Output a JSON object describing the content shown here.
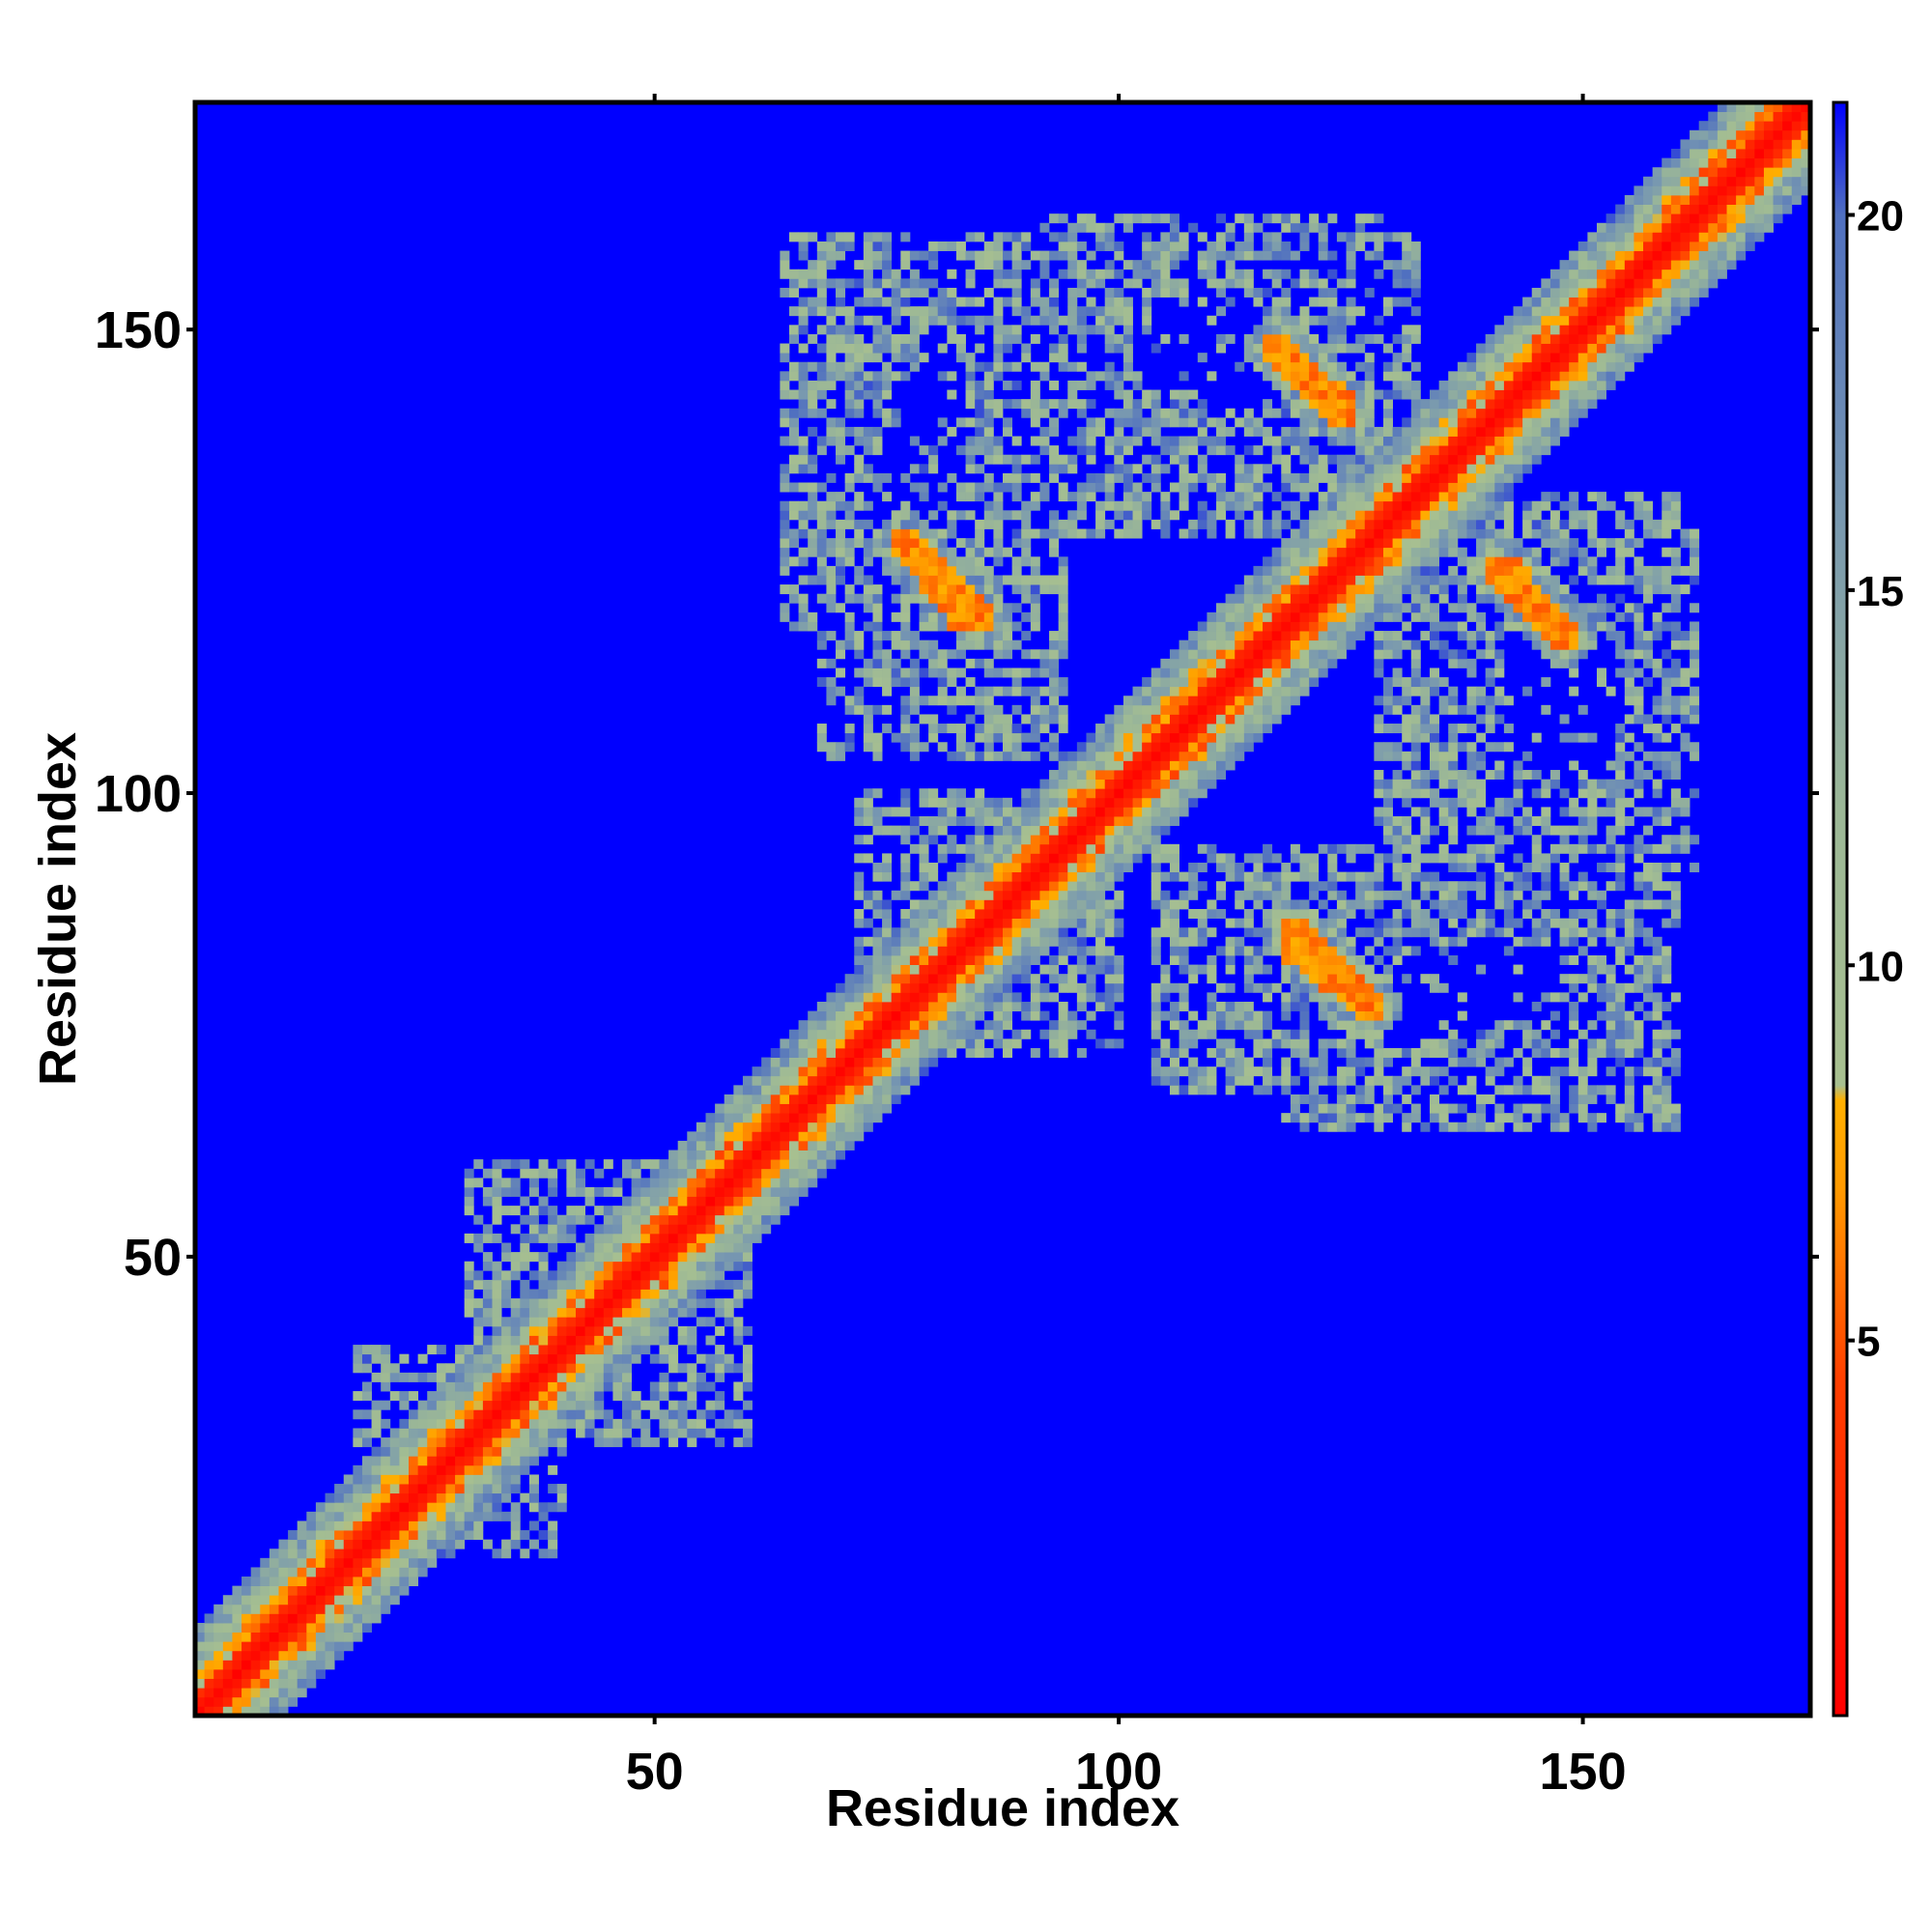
{
  "chart_data": {
    "type": "heatmap",
    "title": "",
    "xlabel": "Residue index",
    "ylabel": "Residue index",
    "xlim": [
      1,
      174
    ],
    "ylim": [
      1,
      174
    ],
    "x_ticks": [
      50,
      100,
      150
    ],
    "y_ticks": [
      50,
      100,
      150
    ],
    "n_residues": 174,
    "colorbar": {
      "ticks": [
        5,
        10,
        15,
        20
      ],
      "range": [
        0,
        21.5
      ],
      "placement": "right",
      "stops": [
        {
          "value": 0,
          "color": "#ff0000"
        },
        {
          "value": 4.5,
          "color": "#ff4000"
        },
        {
          "value": 7,
          "color": "#ff9900"
        },
        {
          "value": 8.2,
          "color": "#ffb000"
        },
        {
          "value": 8.4,
          "color": "#a8c090"
        },
        {
          "value": 12,
          "color": "#9cb896"
        },
        {
          "value": 16,
          "color": "#7898b0"
        },
        {
          "value": 20,
          "color": "#5070c0"
        },
        {
          "value": 21.5,
          "color": "#0000ff"
        }
      ]
    },
    "background_color": "#0000ff",
    "description_of_pattern": {
      "diagonal_contact_band": {
        "from": [
          1,
          1
        ],
        "to": [
          174,
          174
        ]
      },
      "contact_islands": [
        {
          "x_range": [
            64,
            90
          ],
          "y_range": [
            118,
            160
          ],
          "strong_segment": [
            [
              77,
              127
            ],
            [
              84,
              118
            ]
          ]
        },
        {
          "x_range": [
            92,
            128
          ],
          "y_range": [
            128,
            162
          ],
          "strong_segment": [
            [
              117,
              148
            ],
            [
              124,
              141
            ]
          ]
        },
        {
          "x_range": [
            136,
            160
          ],
          "y_range": [
            92,
            132
          ],
          "strong_segment": [
            [
              142,
              124
            ],
            [
              148,
              117
            ]
          ]
        },
        {
          "x_range": [
            104,
            160
          ],
          "y_range": [
            68,
            94
          ],
          "strong_segment": [
            [
              119,
              85
            ],
            [
              126,
              78
            ]
          ]
        },
        {
          "x_range": [
            72,
            100
          ],
          "y_range": [
            72,
            100
          ]
        },
        {
          "x_range": [
            18,
            38
          ],
          "y_range": [
            18,
            40
          ]
        },
        {
          "x_range": [
            30,
            60
          ],
          "y_range": [
            30,
            60
          ]
        }
      ]
    }
  }
}
